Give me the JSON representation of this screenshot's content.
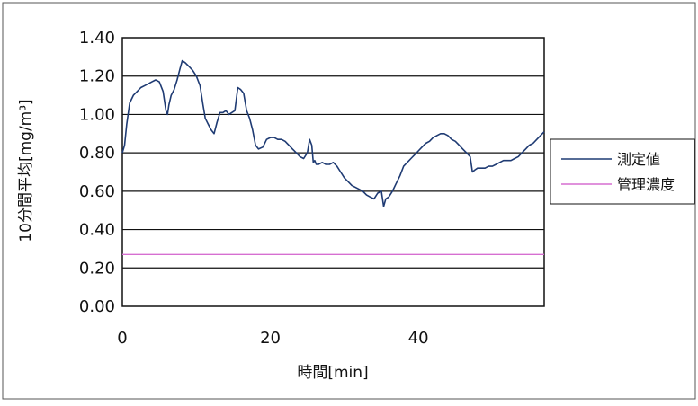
{
  "chart_data": {
    "type": "line",
    "xlabel": "時間[min]",
    "ylabel": "10分間平均[mg/m³]",
    "xlim": [
      0,
      57
    ],
    "ylim": [
      0,
      1.4
    ],
    "xticks": [
      "0",
      "20",
      "40"
    ],
    "xtick_values": [
      0,
      20,
      40
    ],
    "yticks": [
      "0.00",
      "0.20",
      "0.40",
      "0.60",
      "0.80",
      "1.00",
      "1.20",
      "1.40"
    ],
    "ytick_values": [
      0,
      0.2,
      0.4,
      0.6,
      0.8,
      1.0,
      1.2,
      1.4
    ],
    "grid": "horizontal",
    "legend_position": "right",
    "series": [
      {
        "name": "測定値",
        "color": "#1f3b73",
        "x": [
          0,
          0.3,
          0.6,
          1.0,
          1.5,
          2.0,
          2.5,
          3.0,
          3.5,
          4.0,
          4.5,
          5.0,
          5.5,
          5.9,
          6.1,
          6.3,
          6.6,
          7.0,
          7.4,
          7.8,
          8.1,
          8.5,
          9.0,
          9.5,
          10.0,
          10.5,
          10.9,
          11.2,
          11.6,
          12.0,
          12.4,
          12.8,
          13.2,
          13.6,
          14.0,
          14.4,
          14.8,
          15.2,
          15.6,
          16.0,
          16.4,
          16.8,
          17.2,
          17.6,
          18.0,
          18.4,
          19.0,
          19.5,
          20.0,
          20.5,
          21.0,
          21.5,
          22.0,
          22.5,
          23.0,
          23.5,
          24.0,
          24.5,
          25.0,
          25.3,
          25.6,
          25.8,
          26.0,
          26.2,
          26.5,
          27.0,
          27.5,
          28.0,
          28.5,
          29.0,
          29.5,
          30.0,
          30.5,
          31.0,
          31.5,
          32.0,
          32.5,
          33.0,
          33.5,
          34.0,
          34.5,
          35.0,
          35.3,
          35.6,
          36.0,
          36.5,
          37.0,
          37.5,
          38.0,
          38.5,
          39.0,
          39.5,
          40.0,
          40.5,
          41.0,
          41.5,
          42.0,
          42.5,
          43.0,
          43.5,
          44.0,
          44.5,
          45.0,
          45.5,
          46.0,
          46.5,
          47.0,
          47.3,
          47.6,
          48.0,
          48.5,
          49.0,
          49.5,
          50.0,
          50.5,
          51.0,
          51.5,
          52.0,
          52.5,
          53.0,
          53.5,
          54.0,
          54.5,
          55.0,
          55.5,
          56.0,
          56.5,
          57.0
        ],
        "values": [
          0.8,
          0.84,
          0.95,
          1.06,
          1.1,
          1.12,
          1.14,
          1.15,
          1.16,
          1.17,
          1.18,
          1.17,
          1.12,
          1.02,
          1.0,
          1.05,
          1.1,
          1.13,
          1.18,
          1.24,
          1.28,
          1.27,
          1.25,
          1.23,
          1.2,
          1.15,
          1.05,
          0.98,
          0.95,
          0.92,
          0.9,
          0.96,
          1.01,
          1.01,
          1.02,
          1.0,
          1.01,
          1.02,
          1.14,
          1.13,
          1.11,
          1.02,
          0.98,
          0.92,
          0.84,
          0.82,
          0.83,
          0.87,
          0.88,
          0.88,
          0.87,
          0.87,
          0.86,
          0.84,
          0.82,
          0.8,
          0.78,
          0.77,
          0.8,
          0.87,
          0.84,
          0.75,
          0.76,
          0.74,
          0.74,
          0.75,
          0.74,
          0.74,
          0.75,
          0.73,
          0.7,
          0.67,
          0.65,
          0.63,
          0.62,
          0.61,
          0.6,
          0.58,
          0.57,
          0.56,
          0.59,
          0.6,
          0.52,
          0.56,
          0.57,
          0.6,
          0.64,
          0.68,
          0.73,
          0.75,
          0.77,
          0.79,
          0.81,
          0.83,
          0.85,
          0.86,
          0.88,
          0.89,
          0.9,
          0.9,
          0.89,
          0.87,
          0.86,
          0.84,
          0.82,
          0.8,
          0.78,
          0.7,
          0.71,
          0.72,
          0.72,
          0.72,
          0.73,
          0.73,
          0.74,
          0.75,
          0.76,
          0.76,
          0.76,
          0.77,
          0.78,
          0.8,
          0.82,
          0.84,
          0.85,
          0.87,
          0.89,
          0.91
        ]
      },
      {
        "name": "管理濃度",
        "color": "#d66fd1",
        "x": [
          0,
          57
        ],
        "values": [
          0.27,
          0.27
        ]
      }
    ]
  }
}
